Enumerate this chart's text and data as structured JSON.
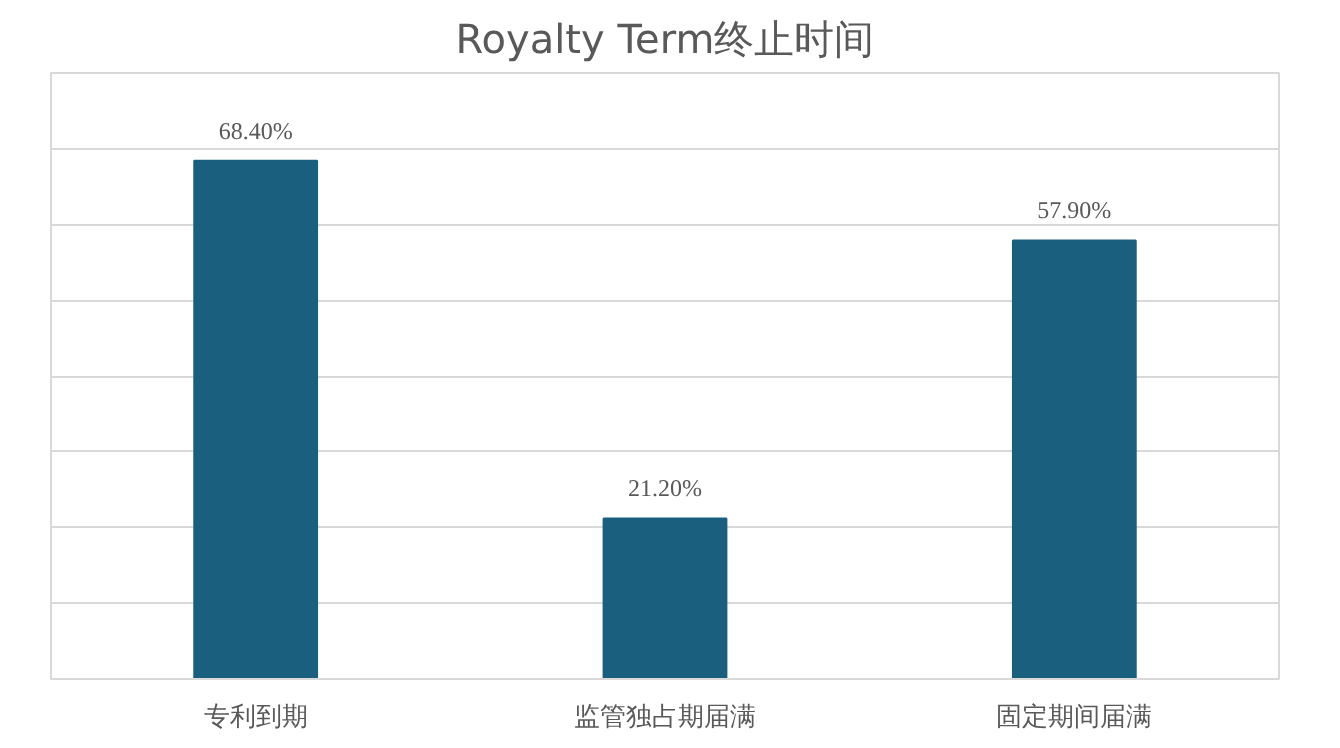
{
  "chart_data": {
    "type": "bar",
    "title": "Royalty Term终止时间",
    "categories": [
      "专利到期",
      "监管独占期届满",
      "固定期间届满"
    ],
    "values": [
      68.4,
      21.2,
      57.9
    ],
    "value_labels": [
      "68.40%",
      "21.20%",
      "57.90%"
    ],
    "color": "#1a5f7e",
    "ylim": [
      0,
      80
    ],
    "yticks": [
      {
        "value": 0,
        "label": null
      },
      {
        "value": 10,
        "label": null
      },
      {
        "value": 20,
        "label": null
      },
      {
        "value": 30,
        "label": null
      },
      {
        "value": 40,
        "label": null
      },
      {
        "value": 50,
        "label": null
      },
      {
        "value": 60,
        "label": null
      },
      {
        "value": 70,
        "label": null
      },
      {
        "value": 80,
        "label": null
      }
    ],
    "grid": "y",
    "tick_labels": "x"
  }
}
